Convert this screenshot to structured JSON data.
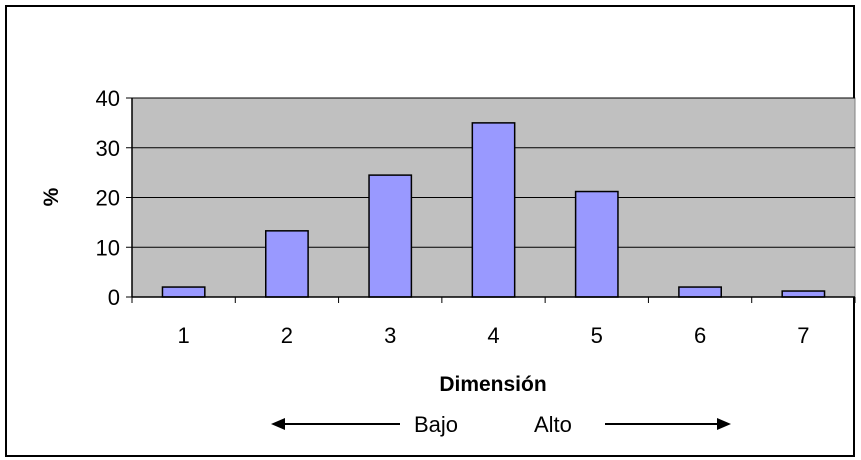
{
  "chart_data": {
    "type": "bar",
    "categories": [
      "1",
      "2",
      "3",
      "4",
      "5",
      "6",
      "7"
    ],
    "values": [
      2,
      13.3,
      24.5,
      35,
      21.2,
      2,
      1.2
    ],
    "xlabel": "Dimensión",
    "ylabel": "%",
    "ylim": [
      0,
      40
    ],
    "yticks": [
      0,
      10,
      20,
      30,
      40
    ],
    "grid": true,
    "colors": {
      "bar_fill": "#9999ff",
      "plot_bg": "#c0c0c0",
      "gridline": "#000000",
      "outline": "#000000"
    },
    "annotations": {
      "low_label": "Bajo",
      "high_label": "Alto"
    }
  }
}
